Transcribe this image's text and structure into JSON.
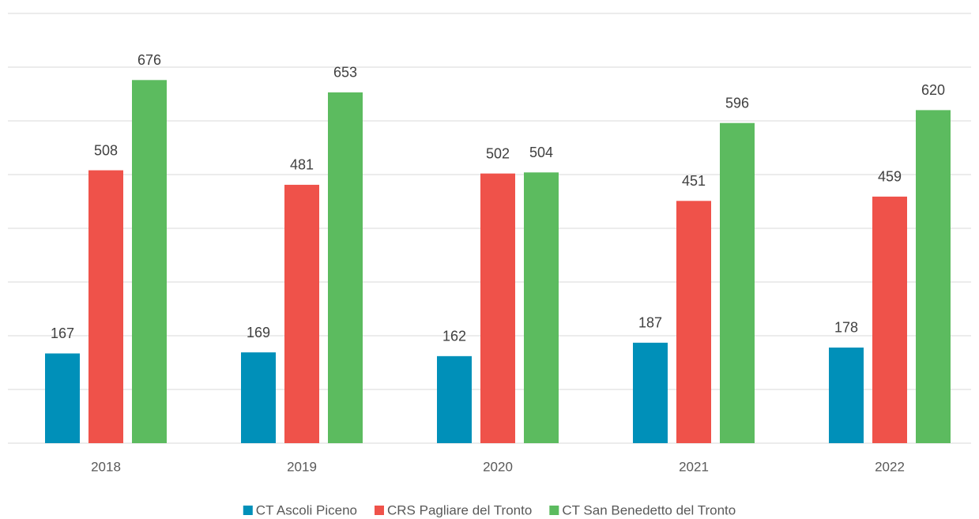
{
  "chart_data": {
    "type": "bar",
    "categories": [
      "2018",
      "2019",
      "2020",
      "2021",
      "2022"
    ],
    "series": [
      {
        "name": "CT Ascoli Piceno",
        "color": "#0090b9",
        "values": [
          167,
          169,
          162,
          187,
          178
        ]
      },
      {
        "name": "CRS Pagliare del Tronto",
        "color": "#ef524a",
        "values": [
          508,
          481,
          502,
          451,
          459
        ]
      },
      {
        "name": "CT San Benedetto del Tronto",
        "color": "#5cbb5f",
        "values": [
          676,
          653,
          504,
          596,
          620
        ]
      }
    ],
    "ylim": [
      0,
      800
    ],
    "yticks": [
      0,
      100,
      200,
      300,
      400,
      500,
      600,
      700,
      800
    ],
    "grid": true,
    "legend": "bottom"
  }
}
